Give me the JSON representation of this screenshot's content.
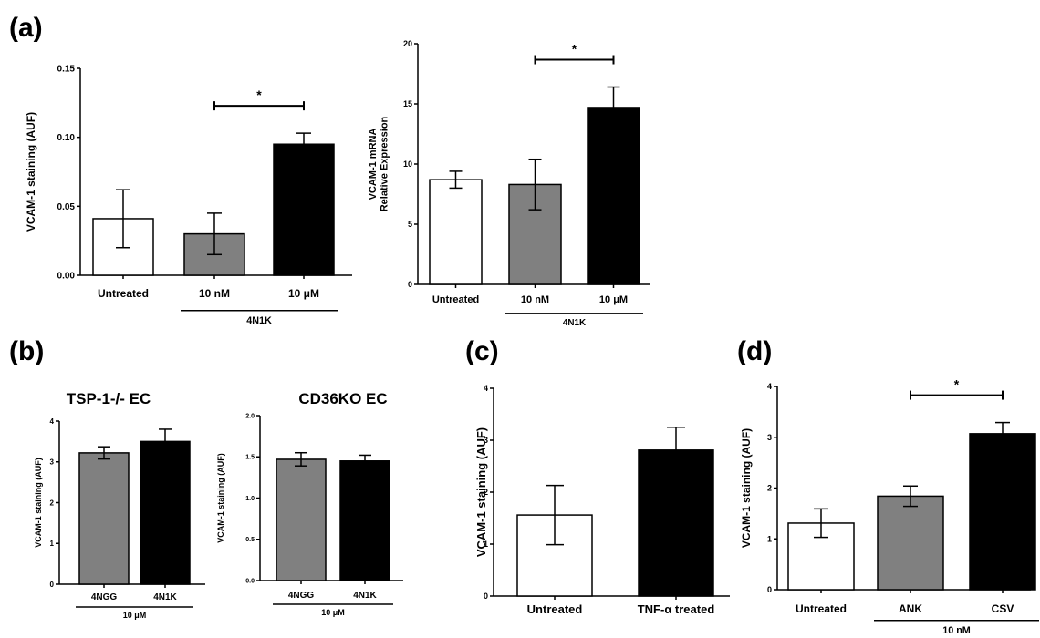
{
  "panel_labels": [
    "(a)",
    "(b)",
    "(c)",
    "(d)"
  ],
  "chart_data": [
    {
      "id": "a1",
      "type": "bar",
      "title": "",
      "xlabel": "",
      "ylabel": "VCAM-1 staining (AUF)",
      "categories": [
        "Untreated",
        "10 nM",
        "10 μM"
      ],
      "values": [
        0.041,
        0.03,
        0.095
      ],
      "errors": [
        0.021,
        0.015,
        0.008
      ],
      "bar_colors": [
        "#ffffff",
        "#808080",
        "#000000"
      ],
      "ylim": [
        0,
        0.15
      ],
      "yticks": [
        "0.00",
        "0.05",
        "0.10",
        "0.15"
      ],
      "group_label": "4N1K",
      "group_span": [
        1,
        2
      ],
      "significance": {
        "between": [
          1,
          2
        ],
        "label": "*"
      },
      "grid": false
    },
    {
      "id": "a2",
      "type": "bar",
      "title": "",
      "xlabel": "",
      "ylabel": "VCAM-1 mRNA Relative Expression",
      "ylabel_lines": [
        "VCAM-1 mRNA",
        "Relative Expression"
      ],
      "categories": [
        "Untreated",
        "10 nM",
        "10 μM"
      ],
      "values": [
        8.7,
        8.3,
        14.7
      ],
      "errors": [
        0.7,
        2.1,
        1.7
      ],
      "bar_colors": [
        "#ffffff",
        "#808080",
        "#000000"
      ],
      "ylim": [
        0,
        20
      ],
      "yticks": [
        "0",
        "5",
        "10",
        "15",
        "20"
      ],
      "group_label": "4N1K",
      "group_span": [
        1,
        2
      ],
      "significance": {
        "between": [
          1,
          2
        ],
        "label": "*"
      },
      "grid": false
    },
    {
      "id": "b1",
      "type": "bar",
      "title": "TSP-1-/- EC",
      "xlabel": "",
      "ylabel": "VCAM-1 staining (AUF)",
      "categories": [
        "4NGG",
        "4N1K"
      ],
      "values": [
        3.22,
        3.5
      ],
      "errors": [
        0.15,
        0.3
      ],
      "bar_colors": [
        "#808080",
        "#000000"
      ],
      "ylim": [
        0,
        4
      ],
      "yticks": [
        "0",
        "1",
        "2",
        "3",
        "4"
      ],
      "group_label": "10 μM",
      "group_span": [
        0,
        1
      ],
      "grid": false
    },
    {
      "id": "b2",
      "type": "bar",
      "title": "CD36KO EC",
      "xlabel": "",
      "ylabel": "VCAM-1 staining (AUF)",
      "categories": [
        "4NGG",
        "4N1K"
      ],
      "values": [
        1.47,
        1.45
      ],
      "errors": [
        0.08,
        0.07
      ],
      "bar_colors": [
        "#808080",
        "#000000"
      ],
      "ylim": [
        0,
        2
      ],
      "yticks": [
        "0.0",
        "0.5",
        "1.0",
        "1.5",
        "2.0"
      ],
      "group_label": "10 μM",
      "group_span": [
        0,
        1
      ],
      "grid": false
    },
    {
      "id": "c",
      "type": "bar",
      "title": "",
      "xlabel": "",
      "ylabel": "VCAM-1 staining (AUF)",
      "categories": [
        "Untreated",
        "TNF-α treated"
      ],
      "values": [
        1.56,
        2.81
      ],
      "errors": [
        0.57,
        0.44
      ],
      "bar_colors": [
        "#ffffff",
        "#000000"
      ],
      "ylim": [
        0,
        4
      ],
      "yticks": [
        "0",
        "1",
        "2",
        "3",
        "4"
      ],
      "grid": false
    },
    {
      "id": "d",
      "type": "bar",
      "title": "",
      "xlabel": "",
      "ylabel": "VCAM-1 staining (AUF)",
      "categories": [
        "Untreated",
        "ANK",
        "CSV"
      ],
      "values": [
        1.31,
        1.84,
        3.07
      ],
      "errors": [
        0.28,
        0.2,
        0.22
      ],
      "bar_colors": [
        "#ffffff",
        "#808080",
        "#000000"
      ],
      "ylim": [
        0,
        4
      ],
      "yticks": [
        "0",
        "1",
        "2",
        "3",
        "4"
      ],
      "group_label": "10 nM",
      "group_span": [
        1,
        2
      ],
      "significance": {
        "between": [
          1,
          2
        ],
        "label": "*"
      },
      "grid": false
    }
  ]
}
